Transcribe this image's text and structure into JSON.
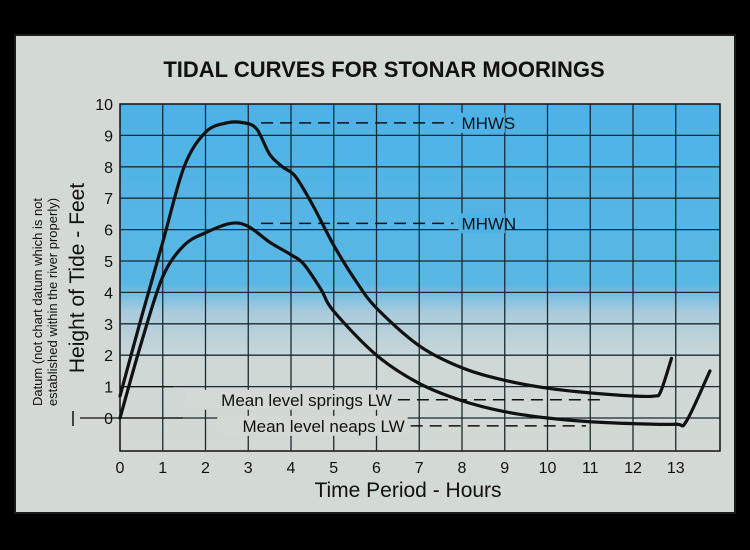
{
  "chart_data": {
    "type": "line",
    "title": "TIDAL CURVES FOR STONAR MOORINGS",
    "xlabel": "Time Period - Hours",
    "ylabel": "Height of Tide - Feet",
    "ylabel_note": [
      "Datum (not chart datum which is not",
      "established within the river properly)"
    ],
    "xlim": [
      0,
      14
    ],
    "ylim": [
      -1,
      10
    ],
    "x_ticks": [
      "0",
      "1",
      "2",
      "3",
      "4",
      "5",
      "6",
      "7",
      "8",
      "9",
      "10",
      "11",
      "12",
      "13"
    ],
    "y_ticks": [
      "10",
      "9",
      "8",
      "7",
      "6",
      "5",
      "4",
      "3",
      "2",
      "1",
      "0"
    ],
    "grid": true,
    "colors": {
      "background_top": "#4db2e6",
      "background_bottom": "#d3d9d5",
      "line": "#111111",
      "card": "#d3d9d5"
    },
    "series": [
      {
        "x": [
          0,
          0.5,
          1,
          1.5,
          2,
          2.5,
          2.9,
          3.2,
          3.5,
          3.8,
          4.1,
          4.5,
          5,
          5.5,
          6,
          7,
          8,
          9,
          10,
          11,
          12,
          12.5,
          12.65,
          12.9
        ],
        "y": [
          0.7,
          3.2,
          5.6,
          8.0,
          9.1,
          9.4,
          9.4,
          9.2,
          8.4,
          8.0,
          7.7,
          6.8,
          5.5,
          4.4,
          3.5,
          2.3,
          1.6,
          1.2,
          0.95,
          0.8,
          0.7,
          0.7,
          0.85,
          1.9
        ]
      },
      {
        "x": [
          0,
          0.5,
          1,
          1.5,
          2,
          2.6,
          3,
          3.5,
          4,
          4.3,
          4.7,
          5,
          6,
          7,
          8,
          9,
          10,
          11,
          12,
          13,
          13.25,
          13.8
        ],
        "y": [
          0,
          2.4,
          4.5,
          5.5,
          5.9,
          6.2,
          6.1,
          5.6,
          5.2,
          4.9,
          4.1,
          3.4,
          2.0,
          1.1,
          0.55,
          0.2,
          0.0,
          -0.12,
          -0.18,
          -0.2,
          -0.1,
          1.5
        ]
      }
    ],
    "annotations": [
      {
        "text": "MHWS",
        "y": 9.4,
        "dash_from": 3.3,
        "dash_to": 7.8
      },
      {
        "text": "MHWN",
        "y": 6.2,
        "dash_from": 3.3,
        "dash_to": 7.8
      },
      {
        "text": "Mean level springs LW",
        "y": 0.58,
        "dash_from": 6.5,
        "dash_to": 11.3
      },
      {
        "text": "Mean level neaps LW",
        "y": -0.25,
        "dash_from": 6.8,
        "dash_to": 10.9
      }
    ]
  }
}
